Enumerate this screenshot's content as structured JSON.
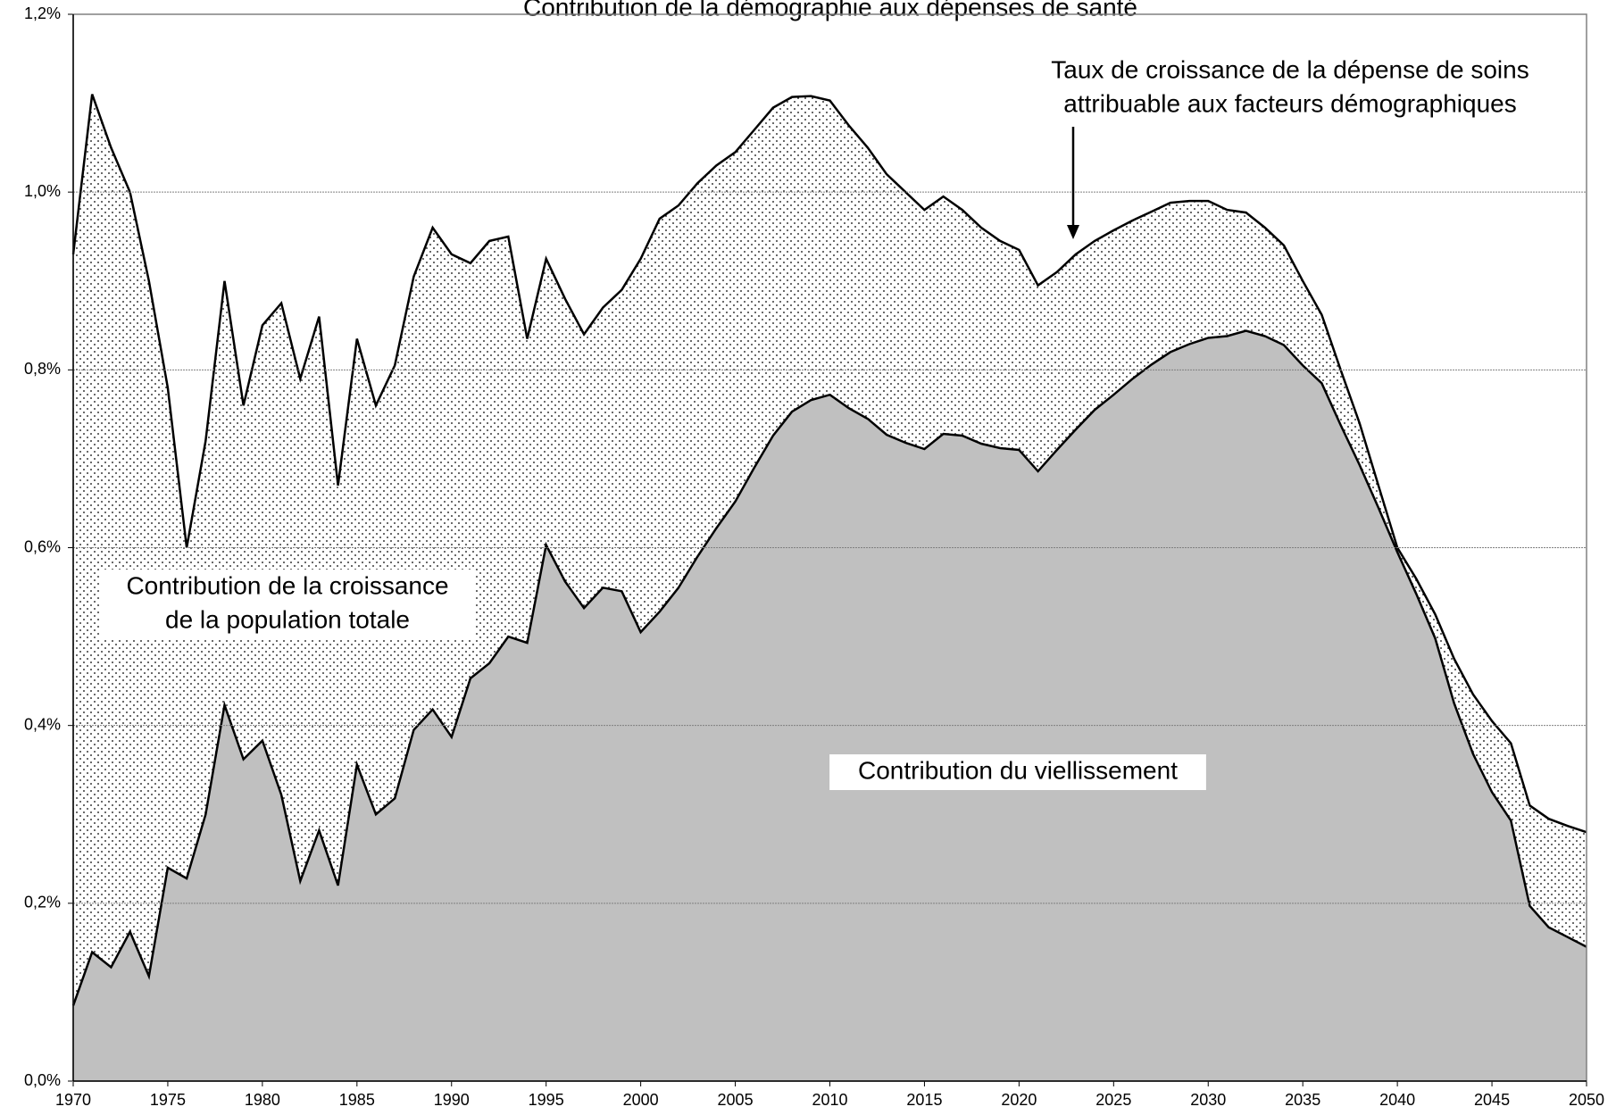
{
  "chart_data": {
    "type": "area",
    "title": "Contribution de la démographie aux dépenses de santé",
    "x": [
      1970,
      1971,
      1972,
      1973,
      1974,
      1975,
      1976,
      1977,
      1978,
      1979,
      1980,
      1981,
      1982,
      1983,
      1984,
      1985,
      1986,
      1987,
      1988,
      1989,
      1990,
      1991,
      1992,
      1993,
      1994,
      1995,
      1996,
      1997,
      1998,
      1999,
      2000,
      2001,
      2002,
      2003,
      2004,
      2005,
      2006,
      2007,
      2008,
      2009,
      2010,
      2011,
      2012,
      2013,
      2014,
      2015,
      2016,
      2017,
      2018,
      2019,
      2020,
      2021,
      2022,
      2023,
      2024,
      2025,
      2026,
      2027,
      2028,
      2029,
      2030,
      2031,
      2032,
      2033,
      2034,
      2035,
      2036,
      2037,
      2038,
      2039,
      2040,
      2041,
      2042,
      2043,
      2044,
      2045,
      2046,
      2047,
      2048,
      2049,
      2050
    ],
    "series": [
      {
        "name": "Taux de croissance de la dépense de soins attribuable aux facteurs démographiques",
        "color": "#000000",
        "fill": "dots",
        "values": [
          0.93,
          1.11,
          1.05,
          1.0,
          0.9,
          0.78,
          0.6,
          0.72,
          0.9,
          0.76,
          0.85,
          0.875,
          0.79,
          0.86,
          0.67,
          0.835,
          0.76,
          0.805,
          0.905,
          0.96,
          0.93,
          0.92,
          0.945,
          0.95,
          0.835,
          0.925,
          0.88,
          0.84,
          0.87,
          0.89,
          0.925,
          0.97,
          0.985,
          1.01,
          1.03,
          1.045,
          1.07,
          1.095,
          1.107,
          1.108,
          1.103,
          1.075,
          1.05,
          1.02,
          1.0,
          0.98,
          0.995,
          0.98,
          0.96,
          0.945,
          0.935,
          0.895,
          0.91,
          0.93,
          0.945,
          0.957,
          0.968,
          0.978,
          0.988,
          0.99,
          0.99,
          0.98,
          0.977,
          0.96,
          0.94,
          0.9,
          0.862,
          0.8,
          0.74,
          0.67,
          0.6,
          0.565,
          0.525,
          0.475,
          0.435,
          0.405,
          0.38,
          0.31,
          0.295,
          0.287,
          0.28
        ]
      },
      {
        "name": "Contribution du viellissement",
        "color": "#000000",
        "fill": "#c0c0c0",
        "values": [
          0.085,
          0.145,
          0.128,
          0.168,
          0.118,
          0.24,
          0.228,
          0.3,
          0.423,
          0.362,
          0.383,
          0.322,
          0.225,
          0.282,
          0.22,
          0.356,
          0.3,
          0.318,
          0.395,
          0.418,
          0.387,
          0.453,
          0.47,
          0.5,
          0.493,
          0.603,
          0.562,
          0.532,
          0.555,
          0.551,
          0.505,
          0.528,
          0.555,
          0.59,
          0.622,
          0.652,
          0.69,
          0.726,
          0.753,
          0.766,
          0.772,
          0.757,
          0.745,
          0.727,
          0.718,
          0.711,
          0.728,
          0.726,
          0.717,
          0.712,
          0.71,
          0.686,
          0.71,
          0.733,
          0.755,
          0.772,
          0.79,
          0.806,
          0.82,
          0.829,
          0.836,
          0.838,
          0.844,
          0.838,
          0.828,
          0.805,
          0.785,
          0.738,
          0.693,
          0.645,
          0.595,
          0.548,
          0.498,
          0.425,
          0.368,
          0.325,
          0.293,
          0.197,
          0.173,
          0.162,
          0.151
        ]
      }
    ],
    "annotations": [
      {
        "lines": [
          "Taux de croissance de la dépense de soins",
          "attribuable aux facteurs démographiques"
        ]
      },
      {
        "lines": [
          "Contribution de la croissance",
          "de la population totale"
        ]
      },
      {
        "lines": [
          "Contribution du viellissement"
        ]
      }
    ],
    "xlim": [
      1970,
      2050
    ],
    "xticks": [
      1970,
      1975,
      1980,
      1985,
      1990,
      1995,
      2000,
      2005,
      2010,
      2015,
      2020,
      2025,
      2030,
      2035,
      2040,
      2045,
      2050
    ],
    "ylim": [
      0,
      1.2
    ],
    "yticks": [
      {
        "value": 0,
        "label": "0,0%"
      },
      {
        "value": 0.2,
        "label": "0,2%"
      },
      {
        "value": 0.4,
        "label": "0,4%"
      },
      {
        "value": 0.6,
        "label": "0,6%"
      },
      {
        "value": 0.8,
        "label": "0,8%"
      },
      {
        "value": 1.0,
        "label": "1,0%"
      },
      {
        "value": 1.2,
        "label": "1,2%"
      }
    ],
    "grid": true
  }
}
